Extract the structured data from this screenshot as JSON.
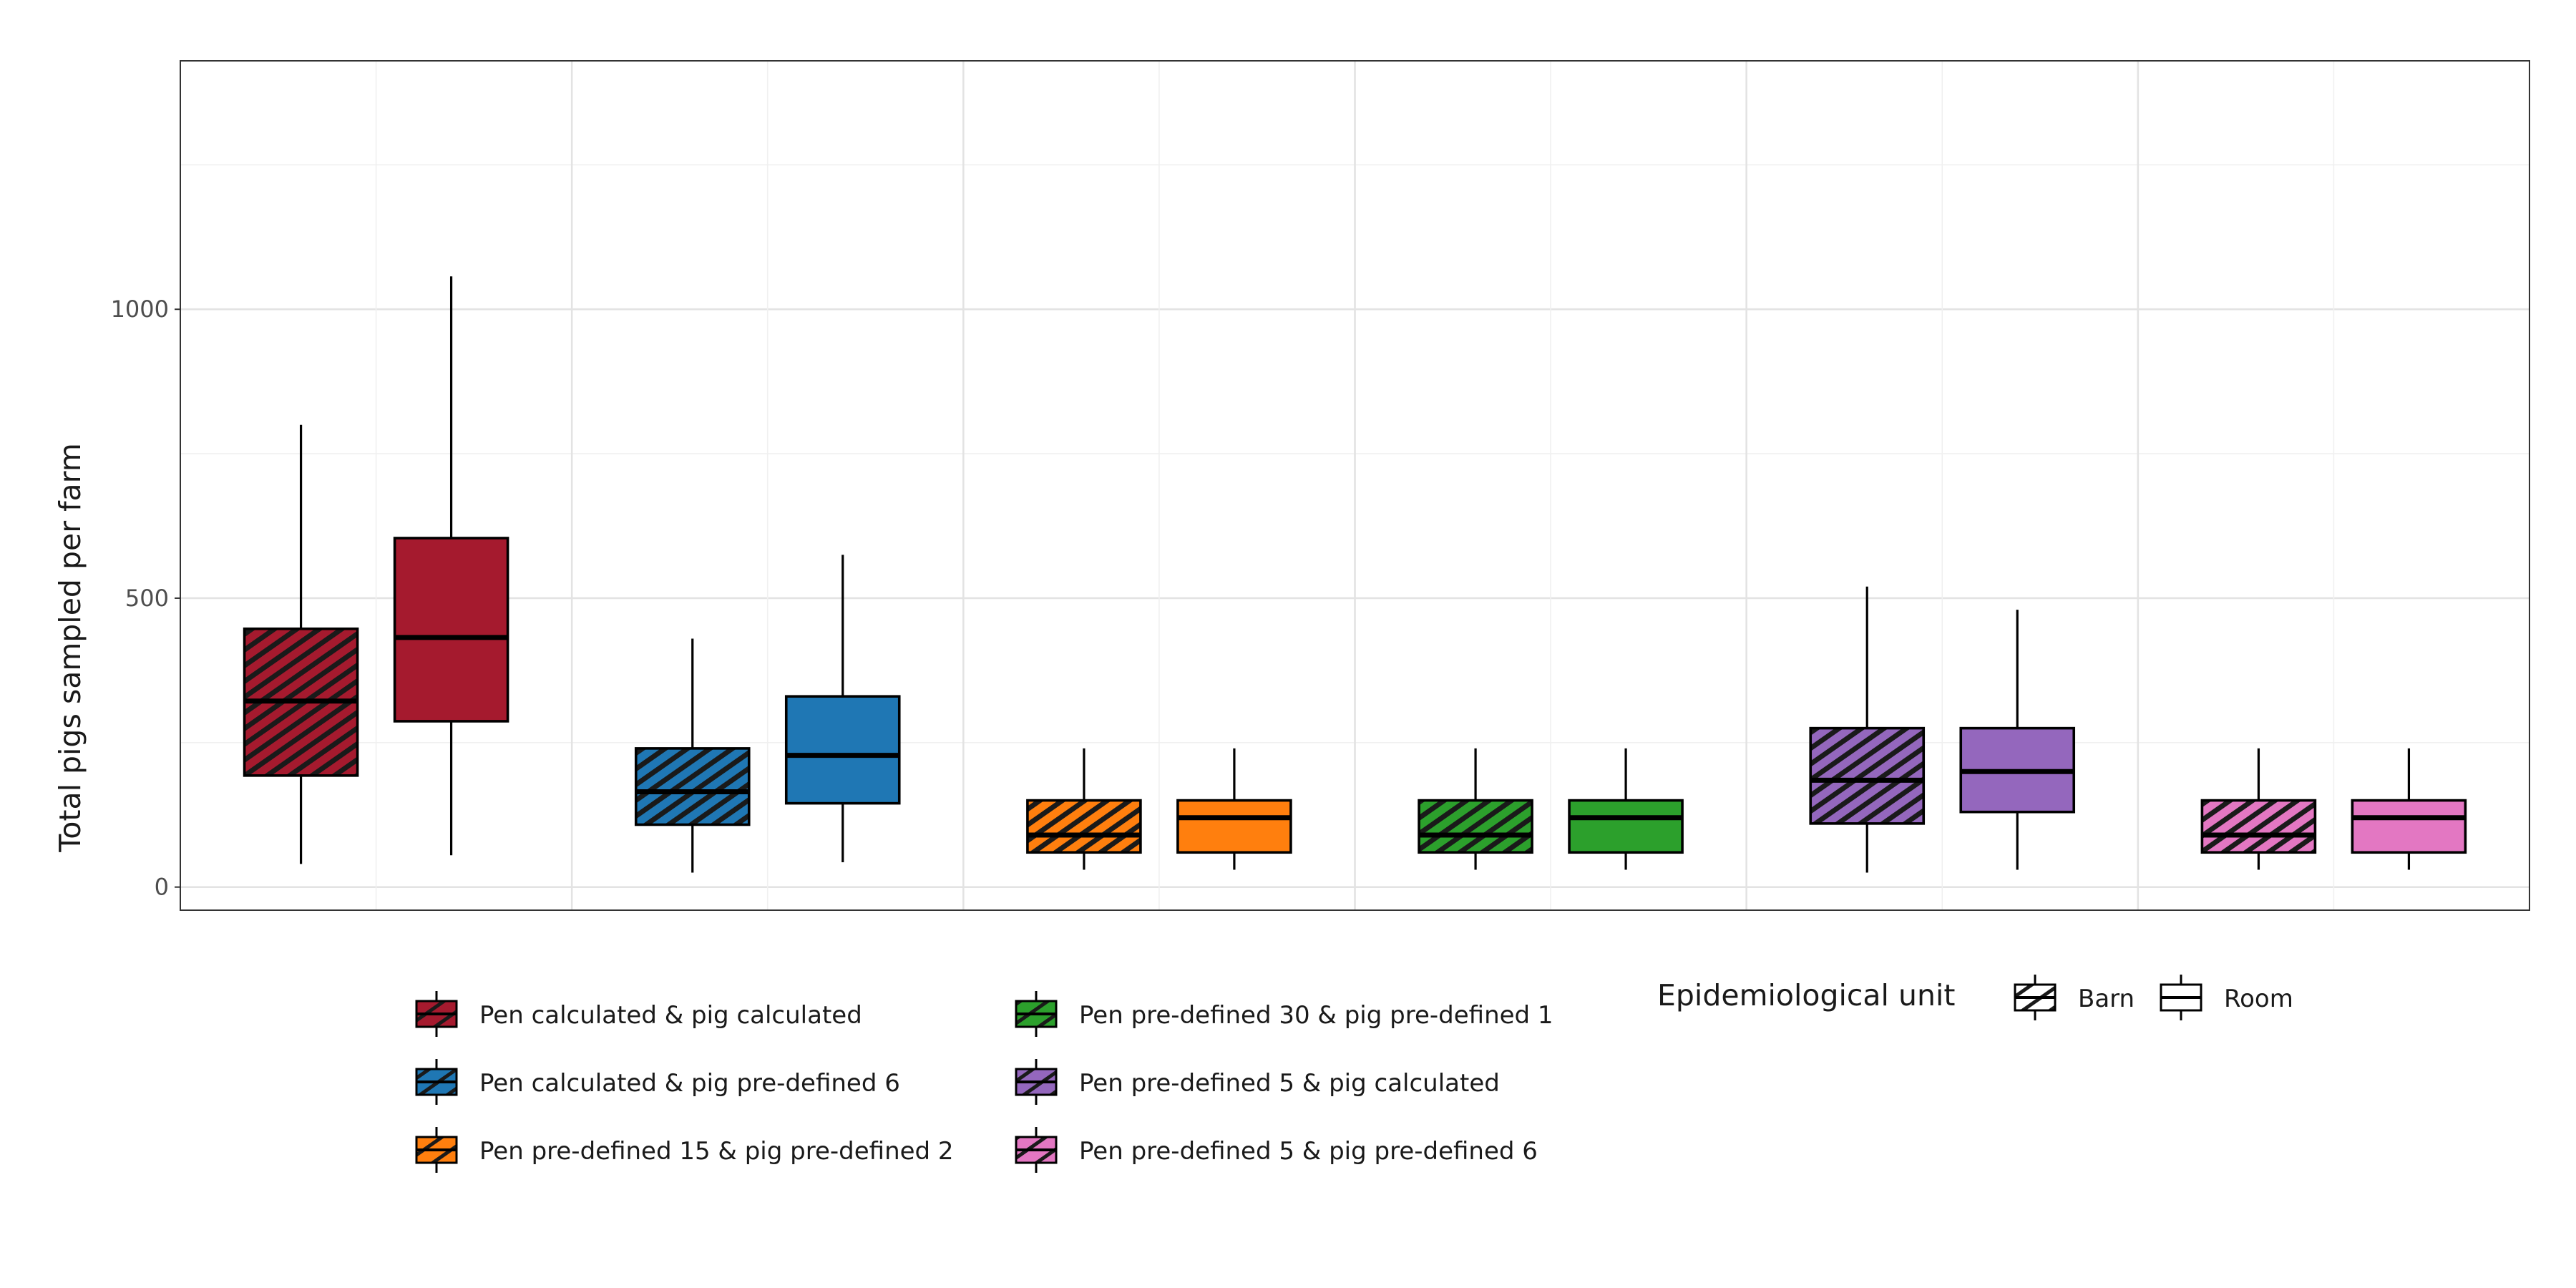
{
  "chart_data": {
    "type": "boxplot",
    "title": "",
    "xlabel": "",
    "ylabel": "Total pigs sampled per farm",
    "ylim": [
      -40,
      1430
    ],
    "yticks": [
      0,
      500,
      1000
    ],
    "grid": true,
    "legend_position": "bottom",
    "strategy_legend": [
      {
        "label": "Pen calculated & pig calculated",
        "color": "#A51A2E"
      },
      {
        "label": "Pen calculated & pig pre-defined 6",
        "color": "#1F77B4"
      },
      {
        "label": "Pen pre-defined 15 & pig pre-defined 2",
        "color": "#FF7F0E"
      },
      {
        "label": "Pen pre-defined 30 & pig pre-defined 1",
        "color": "#2CA02C"
      },
      {
        "label": "Pen pre-defined 5 & pig calculated",
        "color": "#9467BD"
      },
      {
        "label": "Pen pre-defined 5 & pig pre-defined 6",
        "color": "#E377C2"
      }
    ],
    "unit_legend": {
      "title": "Epidemiological unit",
      "items": [
        {
          "label": "Barn",
          "pattern": "stripe"
        },
        {
          "label": "Room",
          "pattern": "none"
        }
      ]
    },
    "series": [
      {
        "group": 0,
        "unit": "Barn",
        "min": 40,
        "q1": 193,
        "median": 322,
        "q3": 447,
        "max": 800
      },
      {
        "group": 0,
        "unit": "Room",
        "min": 55,
        "q1": 287,
        "median": 432,
        "q3": 604,
        "max": 1057
      },
      {
        "group": 1,
        "unit": "Barn",
        "min": 25,
        "q1": 108,
        "median": 165,
        "q3": 240,
        "max": 430
      },
      {
        "group": 1,
        "unit": "Room",
        "min": 43,
        "q1": 145,
        "median": 228,
        "q3": 330,
        "max": 575
      },
      {
        "group": 2,
        "unit": "Barn",
        "min": 30,
        "q1": 60,
        "median": 90,
        "q3": 150,
        "max": 240
      },
      {
        "group": 2,
        "unit": "Room",
        "min": 30,
        "q1": 60,
        "median": 120,
        "q3": 150,
        "max": 240
      },
      {
        "group": 3,
        "unit": "Barn",
        "min": 30,
        "q1": 60,
        "median": 90,
        "q3": 150,
        "max": 240
      },
      {
        "group": 3,
        "unit": "Room",
        "min": 30,
        "q1": 60,
        "median": 120,
        "q3": 150,
        "max": 240
      },
      {
        "group": 4,
        "unit": "Barn",
        "min": 25,
        "q1": 110,
        "median": 185,
        "q3": 275,
        "max": 520
      },
      {
        "group": 4,
        "unit": "Room",
        "min": 30,
        "q1": 130,
        "median": 200,
        "q3": 275,
        "max": 480
      },
      {
        "group": 5,
        "unit": "Barn",
        "min": 30,
        "q1": 60,
        "median": 90,
        "q3": 150,
        "max": 240
      },
      {
        "group": 5,
        "unit": "Room",
        "min": 30,
        "q1": 60,
        "median": 120,
        "q3": 150,
        "max": 240
      }
    ]
  }
}
